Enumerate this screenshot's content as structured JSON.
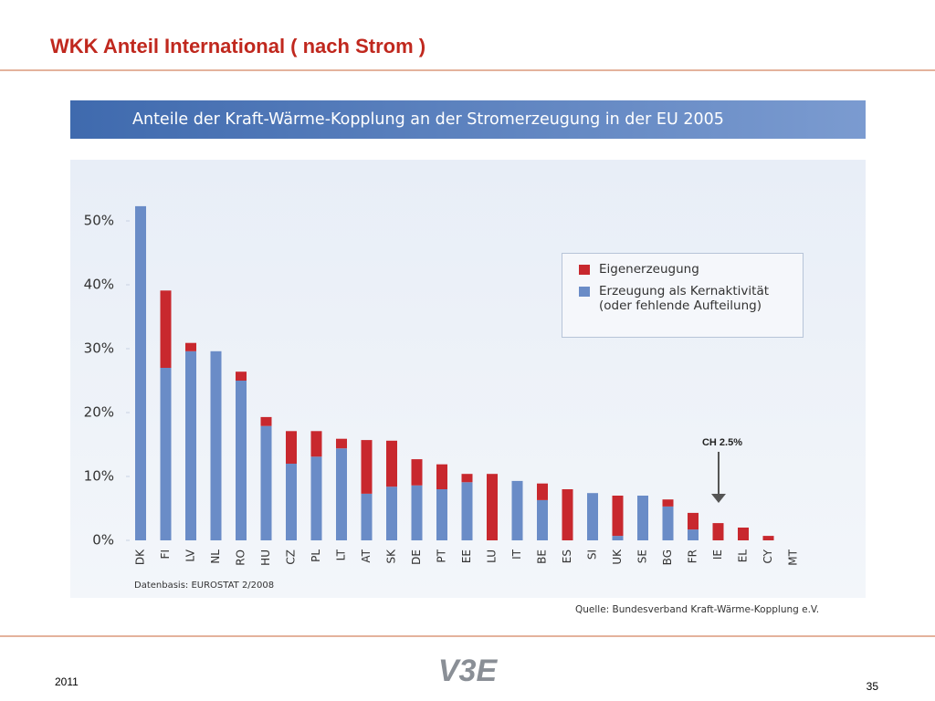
{
  "slide_title": "WKK Anteil International ( nach Strom )",
  "chart_data": {
    "type": "stacked-bar",
    "title": "Anteile der Kraft-Wärme-Kopplung an der Stromerzeugung in der EU 2005",
    "categories": [
      "DK",
      "FI",
      "LV",
      "NL",
      "RO",
      "HU",
      "CZ",
      "PL",
      "LT",
      "AT",
      "SK",
      "DE",
      "PT",
      "EE",
      "LU",
      "IT",
      "BE",
      "ES",
      "SI",
      "UK",
      "SE",
      "BG",
      "FR",
      "IE",
      "EL",
      "CY",
      "MT"
    ],
    "series": [
      {
        "name": "Eigenerzeugung",
        "color": "#c8282e",
        "values": [
          0,
          12.1,
          1.3,
          0,
          1.4,
          1.4,
          5.1,
          4.0,
          1.5,
          8.4,
          7.2,
          4.1,
          3.9,
          1.3,
          10.4,
          0,
          2.6,
          8.0,
          0,
          6.3,
          0,
          1.1,
          2.6,
          2.7,
          2.0,
          0.7,
          0
        ]
      },
      {
        "name": "Erzeugung als Kernaktivität (oder fehlende Aufteilung)",
        "color": "#6a8cc7",
        "values": [
          52.3,
          27.0,
          29.6,
          29.6,
          25.0,
          17.9,
          12.0,
          13.1,
          14.4,
          7.3,
          8.4,
          8.6,
          8.0,
          9.1,
          0,
          9.3,
          6.3,
          0,
          7.4,
          0.7,
          7.0,
          5.3,
          1.7,
          0,
          0,
          0,
          0
        ]
      }
    ],
    "stack_order": [
      "Erzeugung als Kernaktivität (oder fehlende Aufteilung)",
      "Eigenerzeugung"
    ],
    "ylim": [
      0,
      55
    ],
    "yticks": [
      {
        "value": 0,
        "label": "0%"
      },
      {
        "value": 10,
        "label": "10%"
      },
      {
        "value": 20,
        "label": "20%"
      },
      {
        "value": 30,
        "label": "30%"
      },
      {
        "value": 40,
        "label": "40%"
      },
      {
        "value": 50,
        "label": "50%"
      }
    ],
    "annotation": "CH 2.5%",
    "source_note": "Datenbasis: EUROSTAT 2/2008",
    "credit": "Quelle: Bundesverband Kraft-Wärme-Kopplung e.V."
  },
  "footer": {
    "year": "2011",
    "page": "35",
    "logo": "V3E"
  }
}
